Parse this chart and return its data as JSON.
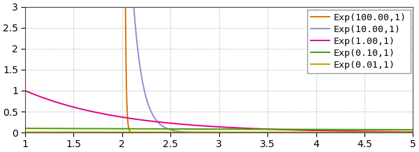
{
  "title": "",
  "xlim": [
    1,
    5
  ],
  "ylim": [
    0,
    3
  ],
  "xticks": [
    1,
    1.5,
    2,
    2.5,
    3,
    3.5,
    4,
    4.5,
    5
  ],
  "yticks": [
    0,
    0.5,
    1,
    1.5,
    2,
    2.5,
    3
  ],
  "series": [
    {
      "lambda": 100.0,
      "mu": 2.0,
      "label": "Exp(100.00,1)",
      "color": "#e07000"
    },
    {
      "lambda": 10.0,
      "mu": 2.0,
      "label": "Exp(10.00,1)",
      "color": "#9090d0"
    },
    {
      "lambda": 1.0,
      "mu": 1.0,
      "label": "Exp(1.00,1)",
      "color": "#e0008a"
    },
    {
      "lambda": 0.1,
      "mu": 1.0,
      "label": "Exp(0.10,1)",
      "color": "#40a000"
    },
    {
      "lambda": 0.01,
      "mu": 1.0,
      "label": "Exp(0.01,1)",
      "color": "#c8a000"
    }
  ],
  "background_color": "#ffffff",
  "grid_color": "#aaaaaa",
  "figsize": [
    6.0,
    2.18
  ],
  "dpi": 100,
  "legend_fontsize": 9.5,
  "tick_fontsize": 10
}
